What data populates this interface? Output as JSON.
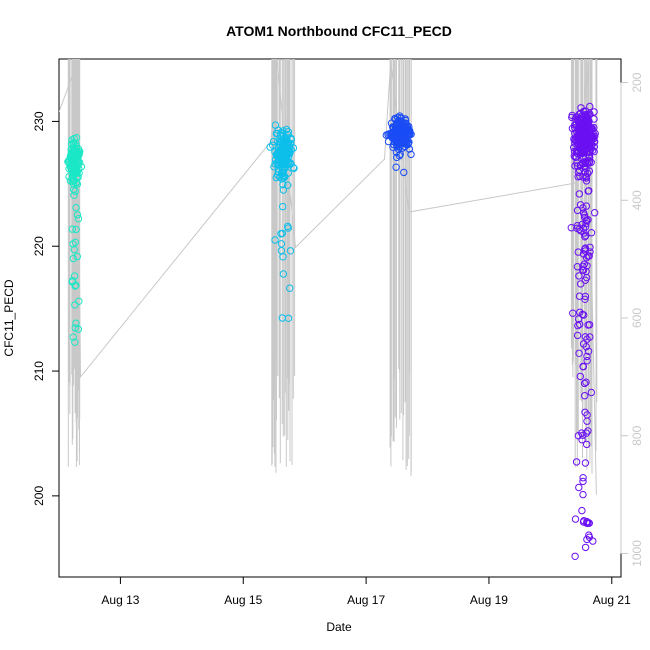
{
  "chart_data": {
    "type": "scatter",
    "title": "ATOM1 Northbound CFC11_PECD",
    "xlabel": "Date",
    "ylabel": "CFC11_PECD",
    "x_ticks": [
      "Aug 13",
      "Aug 15",
      "Aug 17",
      "Aug 19",
      "Aug 21"
    ],
    "y_ticks": [
      200,
      210,
      220,
      230
    ],
    "ylim": [
      193.5,
      235
    ],
    "right_axis": {
      "ticks": [
        200,
        400,
        600,
        800,
        1000
      ],
      "range": [
        160,
        1040
      ],
      "inverted": true,
      "color": "#c8c8c8"
    },
    "xlim_days": [
      12.0,
      21.15
    ],
    "grid": false,
    "legend": "none",
    "series": [
      {
        "day_center": 12.25,
        "day_spread": 0.09,
        "y_center": 226.8,
        "y_spread": 1.6,
        "n": 110,
        "tail_n": 30,
        "tail_min": 212,
        "color": "#1be7c6"
      },
      {
        "day_center": 15.65,
        "day_spread": 0.17,
        "y_center": 227.5,
        "y_spread": 1.8,
        "n": 150,
        "tail_n": 22,
        "tail_min": 213.5,
        "color": "#0dbfea"
      },
      {
        "day_center": 17.55,
        "day_spread": 0.17,
        "y_center": 229.0,
        "y_spread": 1.3,
        "n": 230,
        "tail_n": 4,
        "tail_min": 225.5,
        "color": "#1a4cf5"
      },
      {
        "day_center": 20.55,
        "day_spread": 0.19,
        "y_center": 228.8,
        "y_spread": 2.1,
        "n": 280,
        "tail_n": 130,
        "tail_min": 194.5,
        "color": "#6a10f2"
      }
    ],
    "flight_track": [
      {
        "day": 12.0,
        "alt": 250
      },
      {
        "day": 12.3,
        "alt": 165
      },
      {
        "day": 12.35,
        "alt": 700
      },
      {
        "day": 15.45,
        "alt": 300
      },
      {
        "day": 15.55,
        "alt": 165
      },
      {
        "day": 15.85,
        "alt": 480
      },
      {
        "day": 17.3,
        "alt": 330
      },
      {
        "day": 17.4,
        "alt": 165
      },
      {
        "day": 17.7,
        "alt": 420
      },
      {
        "day": 20.45,
        "alt": 370
      },
      {
        "day": 20.6,
        "alt": 165
      },
      {
        "day": 20.75,
        "alt": 900
      }
    ]
  }
}
